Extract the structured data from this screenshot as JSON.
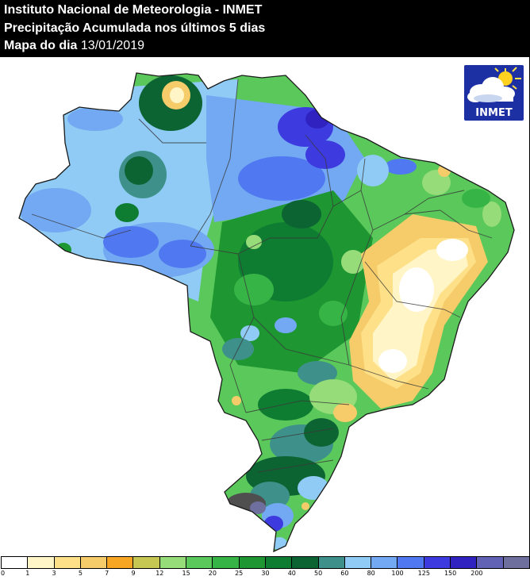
{
  "header": {
    "title": "Instituto Nacional de Meteorologia - INMET",
    "subtitle": "Precipitação Acumulada nos últimos 5 dias",
    "date_label": "Mapa do dia",
    "date_value": "13/01/2019"
  },
  "logo": {
    "text": "INMET",
    "icon": "sun-cloud-icon"
  },
  "legend": {
    "colors": [
      "#ffffff",
      "#fff5c6",
      "#fde088",
      "#f6cc6a",
      "#f6a623",
      "#c6c653",
      "#96dc78",
      "#5ac85a",
      "#37b446",
      "#1e9632",
      "#0e7d32",
      "#0d6433",
      "#3e918a",
      "#8fcbf5",
      "#72a9f2",
      "#5078f0",
      "#3d3be0",
      "#2f22c0",
      "#6161b5",
      "#6f6f9e",
      "#4f4f4f"
    ],
    "ticks": [
      "0",
      "1",
      "3",
      "5",
      "7",
      "9",
      "12",
      "15",
      "20",
      "25",
      "30",
      "40",
      "50",
      "60",
      "80",
      "100",
      "125",
      "150",
      "200"
    ]
  }
}
